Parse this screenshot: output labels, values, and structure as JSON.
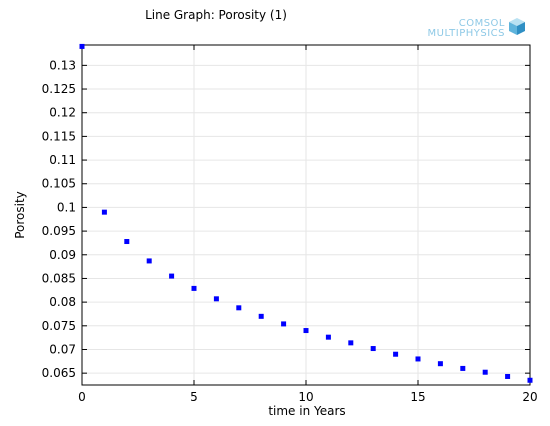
{
  "logo": {
    "line1": "COMSOL",
    "line2": "MULTIPHYSICS"
  },
  "chart_data": {
    "type": "scatter",
    "title": "Line Graph: Porosity (1)",
    "xlabel": "time in Years",
    "ylabel": "Porosity",
    "xlim": [
      0,
      20
    ],
    "ylim": [
      0.0625,
      0.1343
    ],
    "xticks": [
      0,
      5,
      10,
      15,
      20
    ],
    "yticks": [
      0.065,
      0.07,
      0.075,
      0.08,
      0.085,
      0.09,
      0.095,
      0.1,
      0.105,
      0.11,
      0.115,
      0.12,
      0.125,
      0.13
    ],
    "xtick_labels": [
      "0",
      "5",
      "10",
      "15",
      "20"
    ],
    "ytick_labels": [
      "0.065",
      "0.07",
      "0.075",
      "0.08",
      "0.085",
      "0.09",
      "0.095",
      "0.1",
      "0.105",
      "0.11",
      "0.115",
      "0.12",
      "0.125",
      "0.13"
    ],
    "grid": true,
    "marker_color": "#0000ff",
    "series": [
      {
        "x": [
          0,
          1,
          2,
          3,
          4,
          5,
          6,
          7,
          8,
          9,
          10,
          11,
          12,
          13,
          14,
          15,
          16,
          17,
          18,
          19,
          20
        ],
        "y": [
          0.134,
          0.099,
          0.0928,
          0.0887,
          0.0855,
          0.0829,
          0.0807,
          0.0788,
          0.077,
          0.0754,
          0.074,
          0.0726,
          0.0714,
          0.0702,
          0.069,
          0.068,
          0.067,
          0.066,
          0.0652,
          0.0643,
          0.0635
        ]
      }
    ]
  }
}
